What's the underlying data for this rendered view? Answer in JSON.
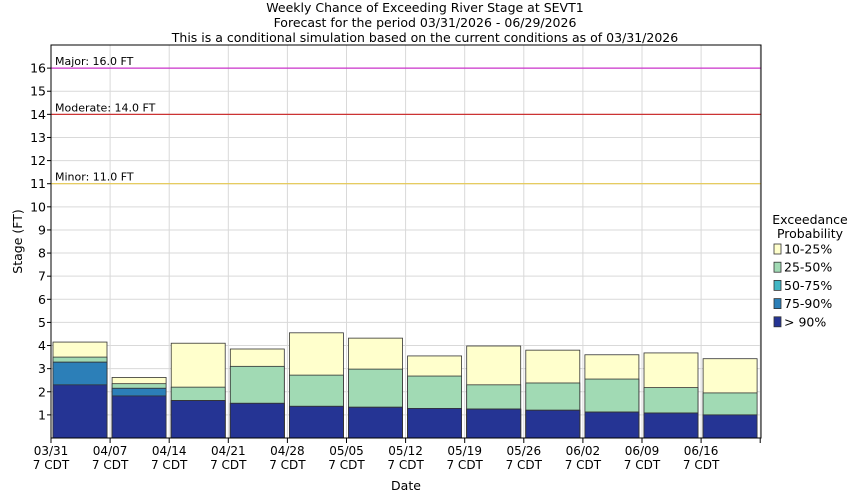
{
  "chart_data": {
    "type": "bar",
    "title_lines": [
      "Weekly Chance of Exceeding River Stage at SEVT1",
      "Forecast for the period 03/31/2026 - 06/29/2026",
      "This is a conditional simulation based on the current conditions as of 03/31/2026"
    ],
    "xlabel": "Date",
    "ylabel": "Stage (FT)",
    "ylim": [
      0,
      17
    ],
    "yticks": [
      1,
      2,
      3,
      4,
      5,
      6,
      7,
      8,
      9,
      10,
      11,
      12,
      13,
      14,
      15,
      16
    ],
    "x_tick_labels": [
      [
        "03/31",
        "7 CDT"
      ],
      [
        "04/07",
        "7 CDT"
      ],
      [
        "04/14",
        "7 CDT"
      ],
      [
        "04/21",
        "7 CDT"
      ],
      [
        "04/28",
        "7 CDT"
      ],
      [
        "05/05",
        "7 CDT"
      ],
      [
        "05/12",
        "7 CDT"
      ],
      [
        "05/19",
        "7 CDT"
      ],
      [
        "05/26",
        "7 CDT"
      ],
      [
        "06/02",
        "7 CDT"
      ],
      [
        "06/09",
        "7 CDT"
      ],
      [
        "06/16",
        "7 CDT"
      ]
    ],
    "grid": true,
    "thresholds": [
      {
        "label": "Major: 16.0 FT",
        "value": 16.0,
        "color": "#cc33cc"
      },
      {
        "label": "Moderate: 14.0 FT",
        "value": 14.0,
        "color": "#cc3333"
      },
      {
        "label": "Minor: 11.0 FT",
        "value": 11.0,
        "color": "#e6c84c"
      }
    ],
    "legend": {
      "title_lines": [
        "Exceedance",
        "Probability"
      ],
      "position": "right",
      "entries": [
        {
          "label": "10-25%",
          "color": "#ffffcc"
        },
        {
          "label": "25-50%",
          "color": "#a1dab4"
        },
        {
          "label": "50-75%",
          "color": "#41b6c4"
        },
        {
          "label": "75-90%",
          "color": "#2c7fb8"
        },
        {
          "label": "> 90%",
          "color": "#253494"
        }
      ]
    },
    "series": [
      {
        "name": "10-25%",
        "values": [
          4.15,
          2.62,
          4.1,
          3.85,
          4.55,
          4.32,
          3.55,
          3.98,
          3.8,
          3.6,
          3.68,
          3.43
        ]
      },
      {
        "name": "25-50%",
        "values": [
          3.5,
          2.35,
          2.2,
          3.1,
          2.72,
          2.98,
          2.68,
          2.3,
          2.38,
          2.55,
          2.18,
          1.95
        ]
      },
      {
        "name": "50-75%",
        "values": [
          3.28,
          2.15,
          1.62,
          1.5,
          1.37,
          1.33,
          1.28,
          1.25,
          1.2,
          1.12,
          1.08,
          1.0
        ]
      },
      {
        "name": "75-90%",
        "values": [
          3.28,
          2.15,
          1.62,
          1.5,
          1.37,
          1.33,
          1.28,
          1.25,
          1.2,
          1.12,
          1.08,
          1.0
        ]
      },
      {
        "name": "> 90%",
        "values": [
          2.3,
          1.82,
          1.62,
          1.5,
          1.37,
          1.33,
          1.28,
          1.25,
          1.2,
          1.12,
          1.08,
          1.0
        ]
      }
    ]
  }
}
